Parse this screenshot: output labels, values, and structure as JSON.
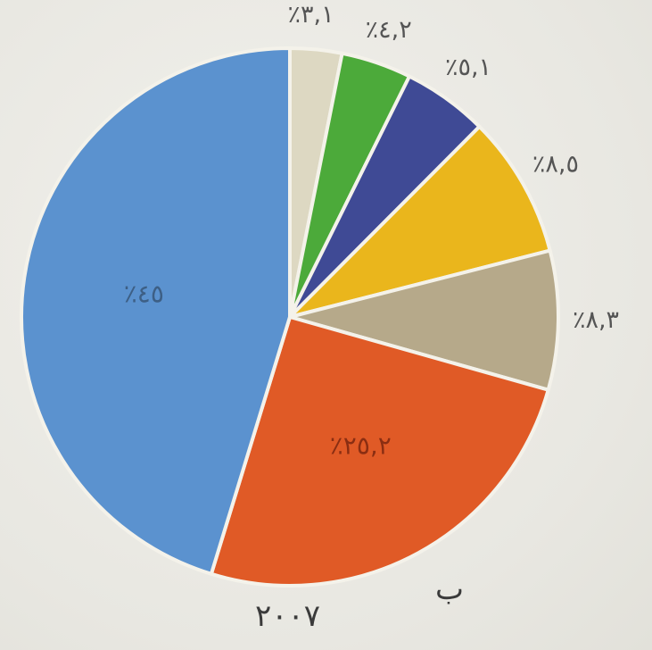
{
  "panel_letter": "ب",
  "year": "٢٠٠٧",
  "chart_data": {
    "type": "pie",
    "title": "",
    "start": "12 o'clock",
    "direction": "clockwise",
    "slices": [
      {
        "value": 3.1,
        "label": "٪٣,١",
        "color": "#ddd8c2"
      },
      {
        "value": 4.2,
        "label": "٪٤,٢",
        "color": "#4caa3a"
      },
      {
        "value": 5.1,
        "label": "٪٥,١",
        "color": "#3f4a95"
      },
      {
        "value": 8.5,
        "label": "٪٨,٥",
        "color": "#eab61c"
      },
      {
        "value": 8.3,
        "label": "٪٨,٣",
        "color": "#b6a98a"
      },
      {
        "value": 25.2,
        "label": "٪٢٥,٢",
        "color": "#e05a26"
      },
      {
        "value": 45,
        "label": "٪٤٥",
        "color": "#5b92cf"
      }
    ]
  }
}
